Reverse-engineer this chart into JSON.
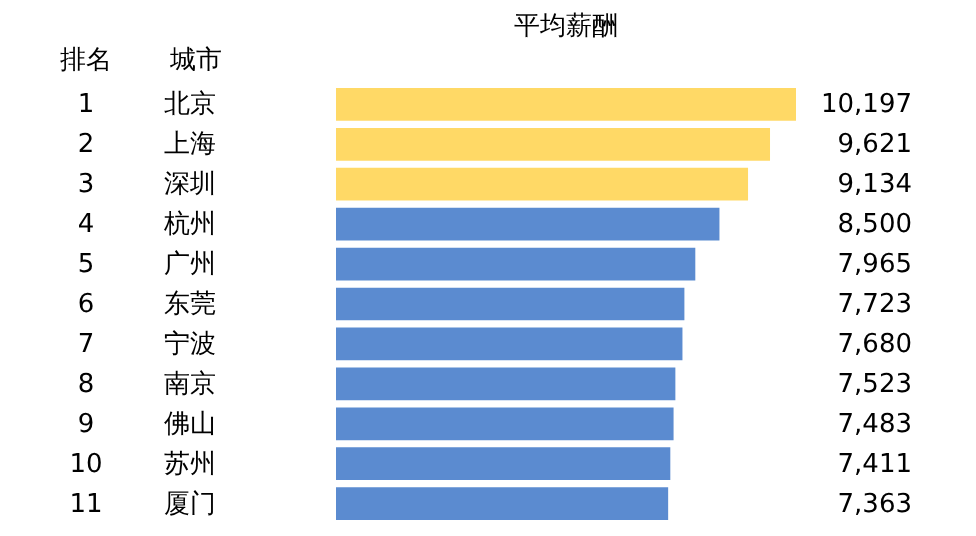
{
  "chart_data": {
    "type": "bar",
    "orientation": "horizontal",
    "title": "平均薪酬",
    "ylabel": "城市",
    "categories": [
      "北京",
      "上海",
      "深圳",
      "杭州",
      "广州",
      "东莞",
      "宁波",
      "南京",
      "佛山",
      "苏州",
      "厦门"
    ],
    "values": [
      10197,
      9621,
      9134,
      8500,
      7965,
      7723,
      7680,
      7523,
      7483,
      7411,
      7363
    ],
    "colors": [
      "#ffd966",
      "#ffd966",
      "#ffd966",
      "#5b8bd0",
      "#5b8bd0",
      "#5b8bd0",
      "#5b8bd0",
      "#5b8bd0",
      "#5b8bd0",
      "#5b8bd0",
      "#5b8bd0"
    ],
    "value_labels": [
      "10,197",
      "9,621",
      "9,134",
      "8,500",
      "7,965",
      "7,723",
      "7,680",
      "7,523",
      "7,483",
      "7,411",
      "7,363"
    ],
    "annotations": [
      "排名",
      "1",
      "2",
      "3",
      "4",
      "5",
      "6",
      "7",
      "8",
      "9",
      "10",
      "11"
    ],
    "grid": false
  }
}
